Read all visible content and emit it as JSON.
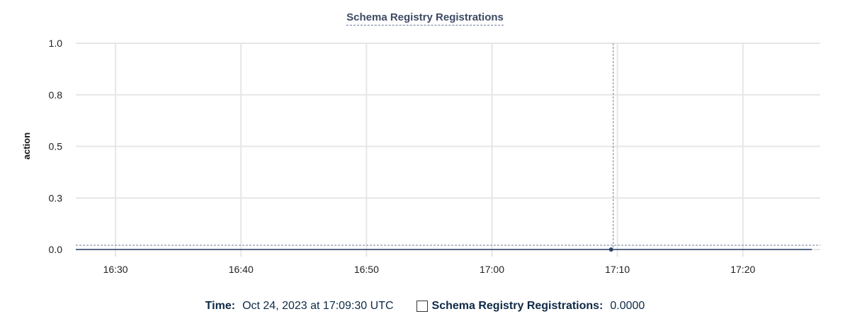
{
  "chart_data": {
    "type": "line",
    "title": "Schema Registry Registrations",
    "ylabel": "action",
    "xlabel": "",
    "ylim": [
      0,
      1
    ],
    "xlim": [
      "16:26:50",
      "17:26:10"
    ],
    "y_ticks": [
      {
        "value": 0,
        "label": "0.0"
      },
      {
        "value": 0.25,
        "label": "0.3"
      },
      {
        "value": 0.5,
        "label": "0.5"
      },
      {
        "value": 0.75,
        "label": "0.8"
      },
      {
        "value": 1,
        "label": "1.0"
      }
    ],
    "x_ticks": [
      "16:30",
      "16:40",
      "16:50",
      "17:00",
      "17:10",
      "17:20"
    ],
    "grid": true,
    "series": [
      {
        "name": "Schema Registry Registrations",
        "color": "#2c3e66",
        "x": [
          "16:26:50",
          "17:09:30",
          "17:25:30"
        ],
        "y": [
          0,
          0,
          0
        ]
      }
    ],
    "hover": {
      "x": "17:09:30",
      "y": 0
    }
  },
  "legend": {
    "time_label": "Time:",
    "time_value": "Oct 24, 2023 at 17:09:30 UTC",
    "series_label": "Schema Registry Registrations:",
    "series_value": "0.0000"
  }
}
